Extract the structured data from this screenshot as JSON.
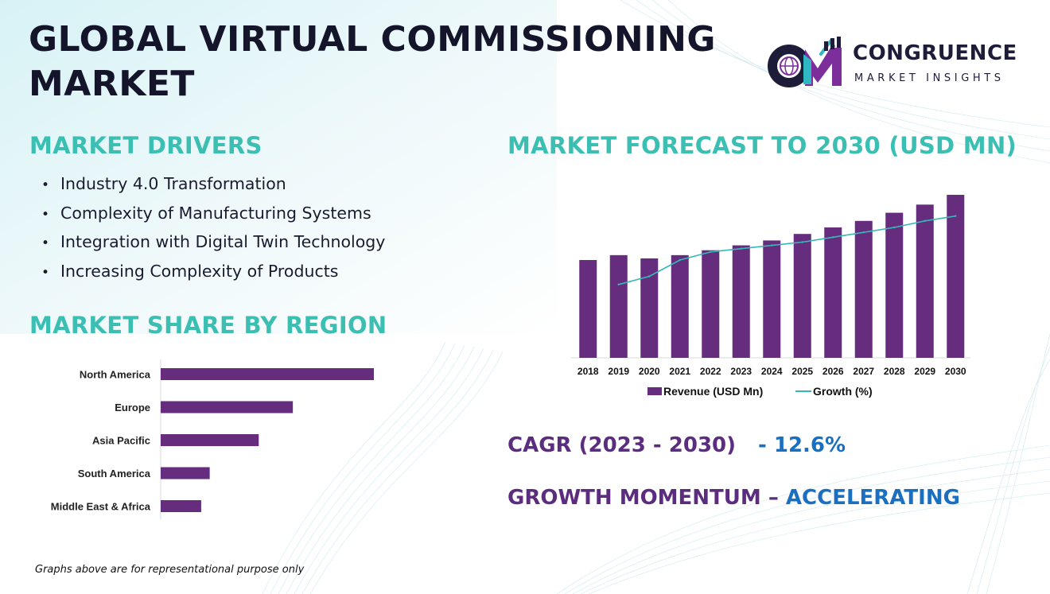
{
  "title": "GLOBAL VIRTUAL COMMISSIONING\nMARKET",
  "logo": {
    "name": "CONGRUENCE",
    "subtitle": "MARKET INSIGHTS",
    "monogram": "CM"
  },
  "drivers": {
    "heading": "MARKET DRIVERS",
    "items": [
      "Industry 4.0 Transformation",
      "Complexity of Manufacturing Systems",
      "Integration with Digital Twin Technology",
      "Increasing Complexity of Products"
    ]
  },
  "region_heading": "MARKET SHARE BY REGION",
  "forecast_heading": "MARKET FORECAST TO 2030 (USD MN)",
  "cagr": {
    "label": "CAGR (2023 - 2030)",
    "value": "- 12.6%"
  },
  "momentum": {
    "label": "GROWTH MOMENTUM –",
    "value": "ACCELERATING"
  },
  "footnote": "Graphs above are for representational purpose only",
  "colors": {
    "bar": "#662d7e",
    "growth_line": "#36b8b8",
    "heading": "#3bbfb3",
    "accent_purple": "#5c2d7f",
    "accent_blue": "#1a6fc0"
  },
  "chart_data": [
    {
      "type": "bar",
      "orientation": "horizontal",
      "categories": [
        "North America",
        "Europe",
        "Asia Pacific",
        "South America",
        "Middle East & Africa"
      ],
      "values": [
        100,
        62,
        46,
        23,
        19
      ],
      "xlim": [
        0,
        100
      ],
      "grid": false
    },
    {
      "type": "bar",
      "categories": [
        "2018",
        "2019",
        "2020",
        "2021",
        "2022",
        "2023",
        "2024",
        "2025",
        "2026",
        "2027",
        "2028",
        "2029",
        "2030"
      ],
      "series": [
        {
          "name": "Revenue (USD Mn)",
          "type": "bar",
          "values": [
            60,
            63,
            61,
            63,
            66,
            69,
            72,
            76,
            80,
            84,
            89,
            94,
            100
          ]
        },
        {
          "name": "Growth (%)",
          "type": "line",
          "values": [
            null,
            45,
            50,
            60,
            65,
            67,
            69,
            71,
            74,
            77,
            80,
            84,
            87
          ]
        }
      ],
      "ylim": [
        0,
        100
      ],
      "legend": "bottom",
      "grid": false
    }
  ]
}
